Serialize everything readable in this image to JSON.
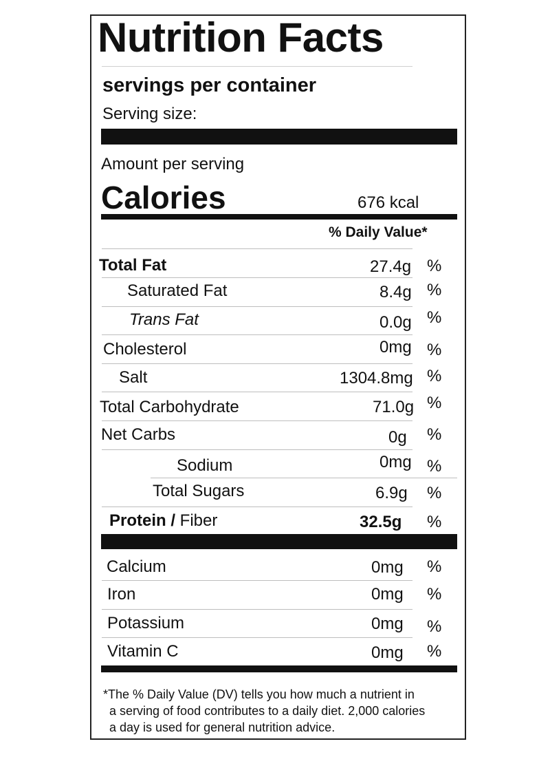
{
  "label": {
    "title": "Nutrition Facts",
    "servings_per_container": "servings per container",
    "serving_size": "Serving size:",
    "amount_per_serving": "Amount per serving",
    "calories_label": "Calories",
    "calories_value": "676 kcal",
    "daily_value_header": "% Daily Value*",
    "nutrients": [
      {
        "name": "Total Fat",
        "amount": "27.4g",
        "pct": "%"
      },
      {
        "name": "Saturated Fat",
        "amount": "8.4g",
        "pct": "%"
      },
      {
        "name": "Trans Fat",
        "amount": "0.0g",
        "pct": "%"
      },
      {
        "name": "Cholesterol",
        "amount": "0mg",
        "pct": "%"
      },
      {
        "name": "Salt",
        "amount": "1304.8mg",
        "pct": "%"
      },
      {
        "name": "Total Carbohydrate",
        "amount": "71.0g",
        "pct": "%"
      },
      {
        "name": "Net Carbs",
        "amount": "0g",
        "pct": "%"
      },
      {
        "name": "Sodium",
        "amount": "0mg",
        "pct": "%"
      },
      {
        "name": "Total Sugars",
        "amount": "6.9g",
        "pct": "%"
      },
      {
        "name_bold": "Protein /",
        "name_rest": " Fiber",
        "amount": "32.5g",
        "pct": "%"
      }
    ],
    "vitamins": [
      {
        "name": "Calcium",
        "amount": "0mg",
        "pct": "%"
      },
      {
        "name": "Iron",
        "amount": "0mg",
        "pct": "%"
      },
      {
        "name": "Potassium",
        "amount": "0mg",
        "pct": "%"
      },
      {
        "name": "Vitamin C",
        "amount": "0mg",
        "pct": "%"
      }
    ],
    "footnote_lines": [
      "*The % Daily Value (DV) tells you how much a nutrient in",
      "a serving of food contributes to a daily diet. 2,000 calories",
      "a day is used for general nutrition advice."
    ]
  }
}
